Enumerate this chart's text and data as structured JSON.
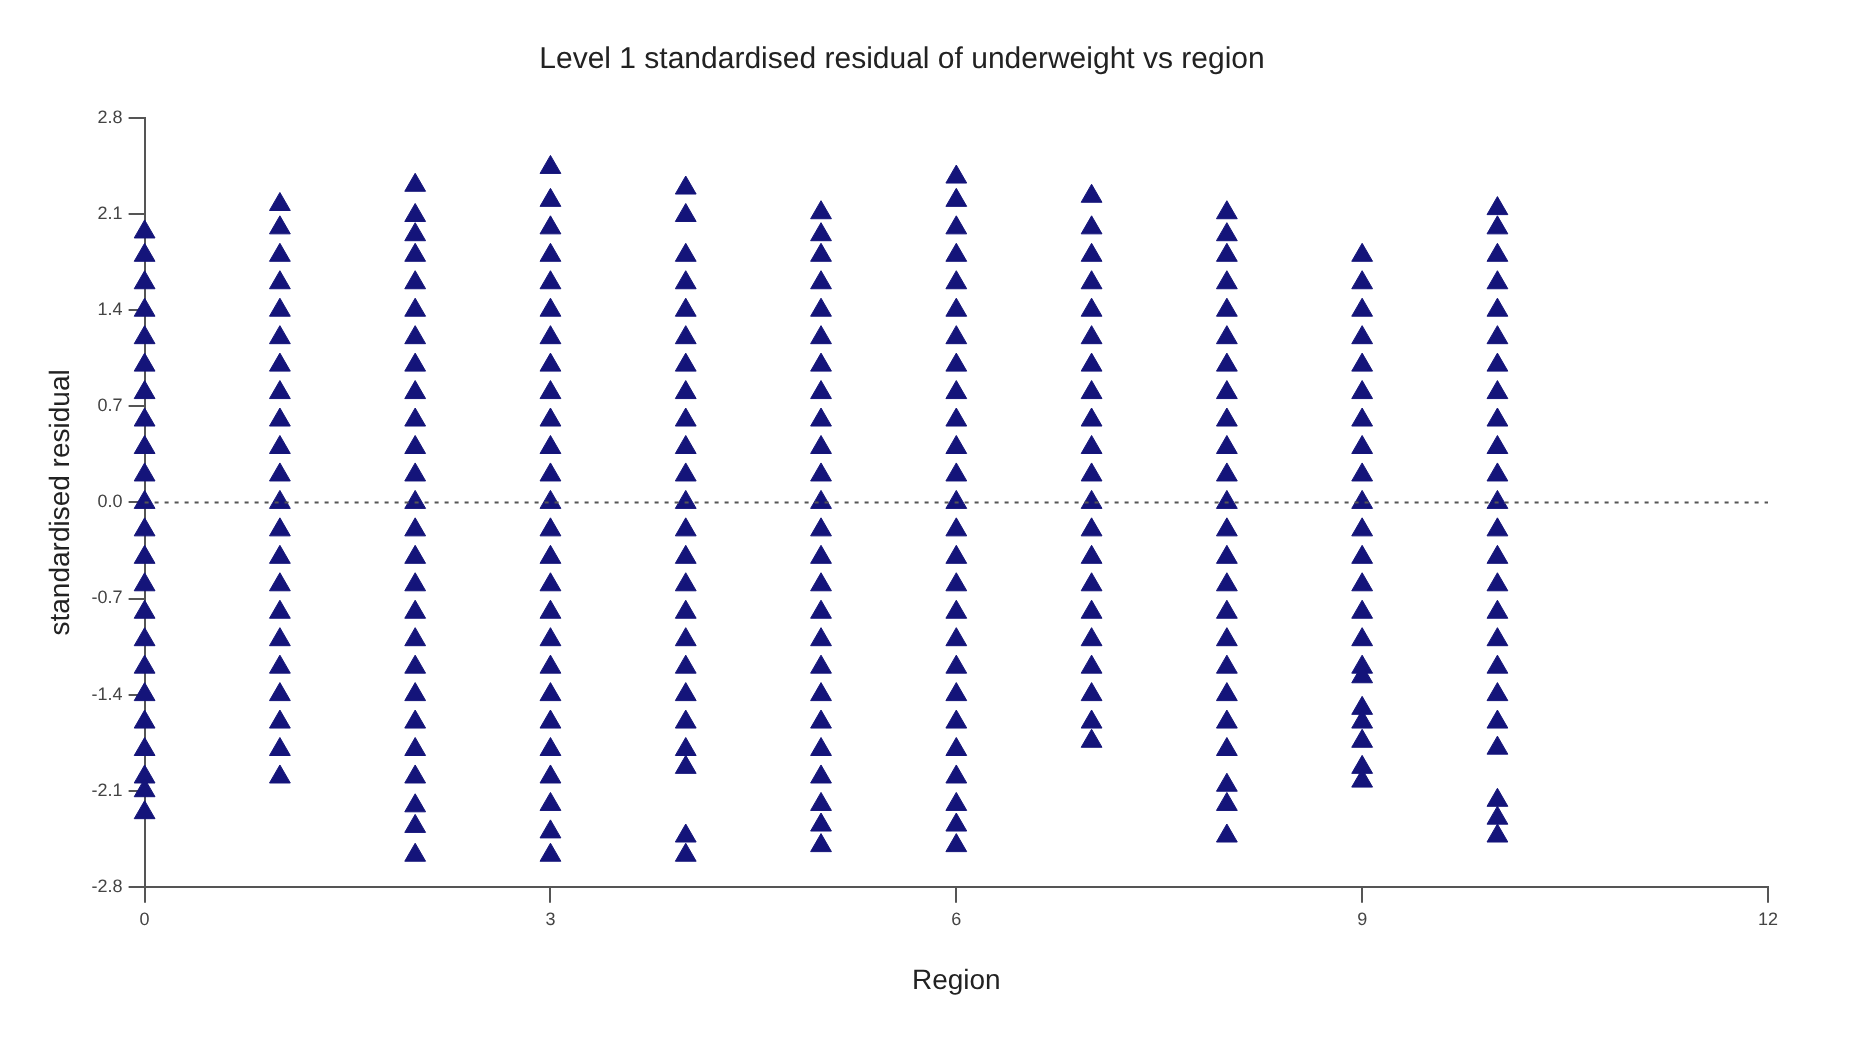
{
  "chart_data": {
    "type": "scatter",
    "title": "Level 1 standardised residual of underweight vs region",
    "xlabel": "Region",
    "ylabel": "standardised residual",
    "marker": "triangle",
    "grid": false,
    "xlim": [
      0,
      12
    ],
    "xticks": [
      0,
      3,
      6,
      9,
      12
    ],
    "ylim": [
      -2.8,
      2.8
    ],
    "yticks": [
      {
        "value": 2.8,
        "label": "2.8"
      },
      {
        "value": 2.1,
        "label": "2.1"
      },
      {
        "value": 1.4,
        "label": "1.4"
      },
      {
        "value": 0.7,
        "label": "0.7"
      },
      {
        "value": 0,
        "label": "0.0"
      },
      {
        "value": -0.7,
        "label": "-0.7"
      },
      {
        "value": -1.4,
        "label": "-1.4"
      },
      {
        "value": -2.1,
        "label": "-2.1"
      },
      {
        "value": -2.8,
        "label": "-2.8"
      }
    ],
    "ref_lines": [
      {
        "axis": "y",
        "value": 0,
        "color": "#555555",
        "line_style": "dotted"
      }
    ],
    "series": [
      {
        "color": "#14147a",
        "x": [
          0,
          0,
          0,
          0,
          0,
          0,
          0,
          0,
          0,
          0,
          0,
          0,
          0,
          0,
          0,
          0,
          0,
          0,
          0,
          0,
          0,
          0,
          0
        ],
        "values": [
          1.97,
          1.8,
          1.6,
          1.4,
          1.2,
          1.0,
          0.8,
          0.6,
          0.4,
          0.2,
          0,
          -0.2,
          -0.4,
          -0.6,
          -0.8,
          -1.0,
          -1.2,
          -1.4,
          -1.6,
          -1.8,
          -2.0,
          -2.1,
          -2.26
        ]
      },
      {
        "color": "#14147a",
        "x": [
          1,
          1,
          1,
          1,
          1,
          1,
          1,
          1,
          1,
          1,
          1,
          1,
          1,
          1,
          1,
          1,
          1,
          1,
          1,
          1,
          1,
          1
        ],
        "values": [
          2.17,
          2.0,
          1.8,
          1.6,
          1.4,
          1.2,
          1.0,
          0.8,
          0.6,
          0.4,
          0.2,
          0,
          -0.2,
          -0.4,
          -0.6,
          -0.8,
          -1.0,
          -1.2,
          -1.4,
          -1.6,
          -1.8,
          -2.0
        ]
      },
      {
        "color": "#14147a",
        "x": [
          2,
          2,
          2,
          2,
          2,
          2,
          2,
          2,
          2,
          2,
          2,
          2,
          2,
          2,
          2,
          2,
          2,
          2,
          2,
          2,
          2,
          2,
          2,
          2,
          2,
          2
        ],
        "values": [
          2.31,
          2.09,
          1.95,
          1.8,
          1.6,
          1.4,
          1.2,
          1.0,
          0.8,
          0.6,
          0.4,
          0.2,
          0,
          -0.2,
          -0.4,
          -0.6,
          -0.8,
          -1.0,
          -1.2,
          -1.4,
          -1.6,
          -1.8,
          -2.0,
          -2.21,
          -2.36,
          -2.57
        ]
      },
      {
        "color": "#14147a",
        "x": [
          3,
          3,
          3,
          3,
          3,
          3,
          3,
          3,
          3,
          3,
          3,
          3,
          3,
          3,
          3,
          3,
          3,
          3,
          3,
          3,
          3,
          3,
          3,
          3,
          3,
          3
        ],
        "values": [
          2.44,
          2.2,
          2.0,
          1.8,
          1.6,
          1.4,
          1.2,
          1.0,
          0.8,
          0.6,
          0.4,
          0.2,
          0,
          -0.2,
          -0.4,
          -0.6,
          -0.8,
          -1.0,
          -1.2,
          -1.4,
          -1.6,
          -1.8,
          -2.0,
          -2.2,
          -2.4,
          -2.57
        ]
      },
      {
        "color": "#14147a",
        "x": [
          4,
          4,
          4,
          4,
          4,
          4,
          4,
          4,
          4,
          4,
          4,
          4,
          4,
          4,
          4,
          4,
          4,
          4,
          4,
          4,
          4,
          4,
          4,
          4
        ],
        "values": [
          2.29,
          2.09,
          1.8,
          1.6,
          1.4,
          1.2,
          1.0,
          0.8,
          0.6,
          0.4,
          0.2,
          0,
          -0.2,
          -0.4,
          -0.6,
          -0.8,
          -1.0,
          -1.2,
          -1.4,
          -1.6,
          -1.8,
          -1.93,
          -2.43,
          -2.57
        ]
      },
      {
        "color": "#14147a",
        "x": [
          5,
          5,
          5,
          5,
          5,
          5,
          5,
          5,
          5,
          5,
          5,
          5,
          5,
          5,
          5,
          5,
          5,
          5,
          5,
          5,
          5,
          5,
          5,
          5,
          5
        ],
        "values": [
          2.11,
          1.95,
          1.8,
          1.6,
          1.4,
          1.2,
          1.0,
          0.8,
          0.6,
          0.4,
          0.2,
          0,
          -0.2,
          -0.4,
          -0.6,
          -0.8,
          -1.0,
          -1.2,
          -1.4,
          -1.6,
          -1.8,
          -2.0,
          -2.2,
          -2.35,
          -2.5
        ]
      },
      {
        "color": "#14147a",
        "x": [
          6,
          6,
          6,
          6,
          6,
          6,
          6,
          6,
          6,
          6,
          6,
          6,
          6,
          6,
          6,
          6,
          6,
          6,
          6,
          6,
          6,
          6,
          6,
          6,
          6,
          6
        ],
        "values": [
          2.37,
          2.2,
          2.0,
          1.8,
          1.6,
          1.4,
          1.2,
          1.0,
          0.8,
          0.6,
          0.4,
          0.2,
          0,
          -0.2,
          -0.4,
          -0.6,
          -0.8,
          -1.0,
          -1.2,
          -1.4,
          -1.6,
          -1.8,
          -2.0,
          -2.2,
          -2.35,
          -2.5
        ]
      },
      {
        "color": "#14147a",
        "x": [
          7,
          7,
          7,
          7,
          7,
          7,
          7,
          7,
          7,
          7,
          7,
          7,
          7,
          7,
          7,
          7,
          7,
          7,
          7,
          7,
          7
        ],
        "values": [
          2.23,
          2.0,
          1.8,
          1.6,
          1.4,
          1.2,
          1.0,
          0.8,
          0.6,
          0.4,
          0.2,
          0,
          -0.2,
          -0.4,
          -0.6,
          -0.8,
          -1.0,
          -1.2,
          -1.4,
          -1.6,
          -1.74
        ]
      },
      {
        "color": "#14147a",
        "x": [
          8,
          8,
          8,
          8,
          8,
          8,
          8,
          8,
          8,
          8,
          8,
          8,
          8,
          8,
          8,
          8,
          8,
          8,
          8,
          8,
          8,
          8,
          8,
          8
        ],
        "values": [
          2.11,
          1.95,
          1.8,
          1.6,
          1.4,
          1.2,
          1.0,
          0.8,
          0.6,
          0.4,
          0.2,
          0,
          -0.2,
          -0.4,
          -0.6,
          -0.8,
          -1.0,
          -1.2,
          -1.4,
          -1.6,
          -1.8,
          -2.06,
          -2.2,
          -2.43
        ]
      },
      {
        "color": "#14147a",
        "x": [
          9,
          9,
          9,
          9,
          9,
          9,
          9,
          9,
          9,
          9,
          9,
          9,
          9,
          9,
          9,
          9,
          9,
          9,
          9,
          9,
          9,
          9
        ],
        "values": [
          1.8,
          1.6,
          1.4,
          1.2,
          1.0,
          0.8,
          0.6,
          0.4,
          0.2,
          0,
          -0.2,
          -0.4,
          -0.6,
          -0.8,
          -1.0,
          -1.2,
          -1.27,
          -1.5,
          -1.6,
          -1.74,
          -1.93,
          -2.03
        ]
      },
      {
        "color": "#14147a",
        "x": [
          10,
          10,
          10,
          10,
          10,
          10,
          10,
          10,
          10,
          10,
          10,
          10,
          10,
          10,
          10,
          10,
          10,
          10,
          10,
          10,
          10,
          10,
          10,
          10
        ],
        "values": [
          2.14,
          2.0,
          1.8,
          1.6,
          1.4,
          1.2,
          1.0,
          0.8,
          0.6,
          0.4,
          0.2,
          0,
          -0.2,
          -0.4,
          -0.6,
          -0.8,
          -1.0,
          -1.2,
          -1.4,
          -1.6,
          -1.79,
          -2.17,
          -2.3,
          -2.43
        ]
      }
    ]
  }
}
